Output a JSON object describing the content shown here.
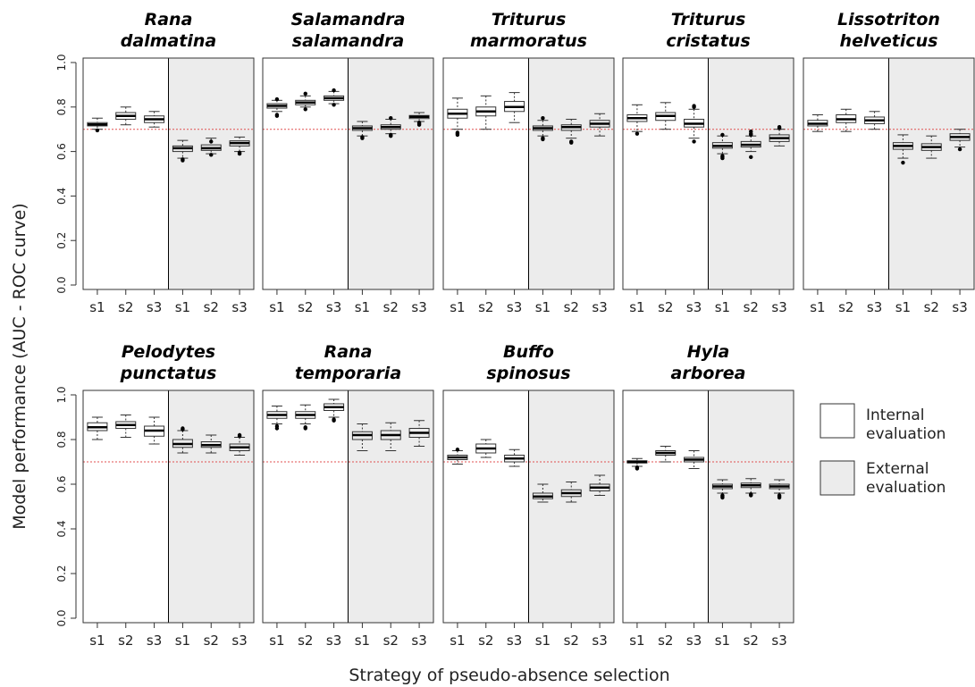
{
  "chart_data": {
    "type": "boxplot",
    "ylabel": "Model performance (AUC - ROC curve)",
    "xlabel": "Strategy of pseudo-absence selection",
    "ylim": [
      0,
      1
    ],
    "yticks": [
      "0.0",
      "0.2",
      "0.4",
      "0.6",
      "0.8",
      "1.0"
    ],
    "reference_line": 0.7,
    "reference_color": "#e05050",
    "internal_color": "#ffffff",
    "external_color": "#ececec",
    "categories": [
      "s1",
      "s2",
      "s3"
    ],
    "legend": {
      "position": "right",
      "internal": [
        "Internal",
        "evaluation"
      ],
      "external": [
        "External",
        "evaluation"
      ]
    },
    "panels": [
      {
        "title": [
          "Rana",
          "dalmatina"
        ],
        "internal": [
          {
            "lo": 0.7,
            "q1": 0.715,
            "med": 0.722,
            "q3": 0.73,
            "hi": 0.75,
            "out": [
              0.695
            ]
          },
          {
            "lo": 0.72,
            "q1": 0.745,
            "med": 0.76,
            "q3": 0.775,
            "hi": 0.8,
            "out": []
          },
          {
            "lo": 0.71,
            "q1": 0.73,
            "med": 0.745,
            "q3": 0.76,
            "hi": 0.78,
            "out": []
          }
        ],
        "external": [
          {
            "lo": 0.57,
            "q1": 0.6,
            "med": 0.615,
            "q3": 0.625,
            "hi": 0.65,
            "out": [
              0.56,
              0.565
            ]
          },
          {
            "lo": 0.59,
            "q1": 0.605,
            "med": 0.615,
            "q3": 0.63,
            "hi": 0.66,
            "out": [
              0.585,
              0.645
            ]
          },
          {
            "lo": 0.6,
            "q1": 0.625,
            "med": 0.638,
            "q3": 0.648,
            "hi": 0.665,
            "out": [
              0.59,
              0.595
            ]
          }
        ]
      },
      {
        "title": [
          "Salamandra",
          "salamandra"
        ],
        "internal": [
          {
            "lo": 0.78,
            "q1": 0.795,
            "med": 0.805,
            "q3": 0.815,
            "hi": 0.83,
            "out": [
              0.76,
              0.765,
              0.835
            ]
          },
          {
            "lo": 0.8,
            "q1": 0.81,
            "med": 0.82,
            "q3": 0.83,
            "hi": 0.85,
            "out": [
              0.79,
              0.86
            ]
          },
          {
            "lo": 0.815,
            "q1": 0.83,
            "med": 0.84,
            "q3": 0.85,
            "hi": 0.87,
            "out": [
              0.81,
              0.875
            ]
          }
        ],
        "external": [
          {
            "lo": 0.67,
            "q1": 0.695,
            "med": 0.705,
            "q3": 0.715,
            "hi": 0.735,
            "out": [
              0.66,
              0.665
            ]
          },
          {
            "lo": 0.68,
            "q1": 0.7,
            "med": 0.71,
            "q3": 0.72,
            "hi": 0.745,
            "out": [
              0.67,
              0.675,
              0.75
            ]
          },
          {
            "lo": 0.735,
            "q1": 0.748,
            "med": 0.756,
            "q3": 0.762,
            "hi": 0.775,
            "out": [
              0.72,
              0.725,
              0.73
            ]
          }
        ]
      },
      {
        "title": [
          "Triturus",
          "marmoratus"
        ],
        "internal": [
          {
            "lo": 0.7,
            "q1": 0.75,
            "med": 0.77,
            "q3": 0.79,
            "hi": 0.84,
            "out": [
              0.675,
              0.68,
              0.685
            ]
          },
          {
            "lo": 0.7,
            "q1": 0.76,
            "med": 0.78,
            "q3": 0.8,
            "hi": 0.85,
            "out": []
          },
          {
            "lo": 0.73,
            "q1": 0.78,
            "med": 0.8,
            "q3": 0.825,
            "hi": 0.865,
            "out": []
          }
        ],
        "external": [
          {
            "lo": 0.67,
            "q1": 0.695,
            "med": 0.705,
            "q3": 0.715,
            "hi": 0.74,
            "out": [
              0.655,
              0.66,
              0.75
            ]
          },
          {
            "lo": 0.66,
            "q1": 0.695,
            "med": 0.71,
            "q3": 0.72,
            "hi": 0.745,
            "out": [
              0.64,
              0.645
            ]
          },
          {
            "lo": 0.67,
            "q1": 0.71,
            "med": 0.725,
            "q3": 0.74,
            "hi": 0.77,
            "out": []
          }
        ]
      },
      {
        "title": [
          "Triturus",
          "cristatus"
        ],
        "internal": [
          {
            "lo": 0.69,
            "q1": 0.735,
            "med": 0.75,
            "q3": 0.765,
            "hi": 0.81,
            "out": [
              0.68
            ]
          },
          {
            "lo": 0.7,
            "q1": 0.74,
            "med": 0.76,
            "q3": 0.775,
            "hi": 0.82,
            "out": []
          },
          {
            "lo": 0.66,
            "q1": 0.71,
            "med": 0.725,
            "q3": 0.745,
            "hi": 0.79,
            "out": [
              0.645,
              0.8,
              0.805
            ]
          }
        ],
        "external": [
          {
            "lo": 0.59,
            "q1": 0.615,
            "med": 0.625,
            "q3": 0.64,
            "hi": 0.67,
            "out": [
              0.57,
              0.575,
              0.58,
              0.675
            ]
          },
          {
            "lo": 0.6,
            "q1": 0.62,
            "med": 0.63,
            "q3": 0.645,
            "hi": 0.67,
            "out": [
              0.575,
              0.675,
              0.68,
              0.69
            ]
          },
          {
            "lo": 0.625,
            "q1": 0.645,
            "med": 0.66,
            "q3": 0.675,
            "hi": 0.7,
            "out": [
              0.705,
              0.71
            ]
          }
        ]
      },
      {
        "title": [
          "Lissotriton",
          "helveticus"
        ],
        "internal": [
          {
            "lo": 0.69,
            "q1": 0.715,
            "med": 0.725,
            "q3": 0.74,
            "hi": 0.765,
            "out": []
          },
          {
            "lo": 0.69,
            "q1": 0.73,
            "med": 0.745,
            "q3": 0.765,
            "hi": 0.79,
            "out": []
          },
          {
            "lo": 0.7,
            "q1": 0.725,
            "med": 0.74,
            "q3": 0.755,
            "hi": 0.78,
            "out": []
          }
        ],
        "external": [
          {
            "lo": 0.57,
            "q1": 0.61,
            "med": 0.625,
            "q3": 0.64,
            "hi": 0.675,
            "out": [
              0.55
            ]
          },
          {
            "lo": 0.57,
            "q1": 0.605,
            "med": 0.62,
            "q3": 0.635,
            "hi": 0.67,
            "out": []
          },
          {
            "lo": 0.62,
            "q1": 0.65,
            "med": 0.665,
            "q3": 0.68,
            "hi": 0.7,
            "out": [
              0.61
            ]
          }
        ]
      },
      {
        "title": [
          "Pelodytes",
          "punctatus"
        ],
        "internal": [
          {
            "lo": 0.8,
            "q1": 0.84,
            "med": 0.855,
            "q3": 0.875,
            "hi": 0.9,
            "out": []
          },
          {
            "lo": 0.81,
            "q1": 0.85,
            "med": 0.865,
            "q3": 0.88,
            "hi": 0.91,
            "out": []
          },
          {
            "lo": 0.78,
            "q1": 0.815,
            "med": 0.84,
            "q3": 0.86,
            "hi": 0.9,
            "out": []
          }
        ],
        "external": [
          {
            "lo": 0.74,
            "q1": 0.765,
            "med": 0.78,
            "q3": 0.8,
            "hi": 0.84,
            "out": [
              0.845,
              0.85
            ]
          },
          {
            "lo": 0.74,
            "q1": 0.765,
            "med": 0.775,
            "q3": 0.79,
            "hi": 0.82,
            "out": []
          },
          {
            "lo": 0.73,
            "q1": 0.75,
            "med": 0.765,
            "q3": 0.78,
            "hi": 0.81,
            "out": [
              0.815,
              0.82
            ]
          }
        ]
      },
      {
        "title": [
          "Rana",
          "temporaria"
        ],
        "internal": [
          {
            "lo": 0.87,
            "q1": 0.895,
            "med": 0.91,
            "q3": 0.925,
            "hi": 0.95,
            "out": [
              0.85,
              0.86
            ]
          },
          {
            "lo": 0.87,
            "q1": 0.895,
            "med": 0.91,
            "q3": 0.925,
            "hi": 0.955,
            "out": [
              0.85,
              0.855
            ]
          },
          {
            "lo": 0.9,
            "q1": 0.93,
            "med": 0.945,
            "q3": 0.96,
            "hi": 0.98,
            "out": [
              0.885,
              0.89
            ]
          }
        ],
        "external": [
          {
            "lo": 0.75,
            "q1": 0.8,
            "med": 0.82,
            "q3": 0.835,
            "hi": 0.87,
            "out": []
          },
          {
            "lo": 0.75,
            "q1": 0.8,
            "med": 0.82,
            "q3": 0.84,
            "hi": 0.875,
            "out": []
          },
          {
            "lo": 0.77,
            "q1": 0.81,
            "med": 0.83,
            "q3": 0.85,
            "hi": 0.885,
            "out": []
          }
        ]
      },
      {
        "title": [
          "Buffo",
          "spinosus"
        ],
        "internal": [
          {
            "lo": 0.69,
            "q1": 0.71,
            "med": 0.72,
            "q3": 0.73,
            "hi": 0.75,
            "out": [
              0.755
            ]
          },
          {
            "lo": 0.72,
            "q1": 0.74,
            "med": 0.76,
            "q3": 0.78,
            "hi": 0.8,
            "out": []
          },
          {
            "lo": 0.68,
            "q1": 0.7,
            "med": 0.715,
            "q3": 0.73,
            "hi": 0.755,
            "out": []
          }
        ],
        "external": [
          {
            "lo": 0.52,
            "q1": 0.535,
            "med": 0.545,
            "q3": 0.56,
            "hi": 0.6,
            "out": []
          },
          {
            "lo": 0.52,
            "q1": 0.545,
            "med": 0.56,
            "q3": 0.575,
            "hi": 0.61,
            "out": []
          },
          {
            "lo": 0.55,
            "q1": 0.57,
            "med": 0.585,
            "q3": 0.6,
            "hi": 0.64,
            "out": []
          }
        ]
      },
      {
        "title": [
          "Hyla",
          "arborea"
        ],
        "internal": [
          {
            "lo": 0.68,
            "q1": 0.695,
            "med": 0.7,
            "q3": 0.705,
            "hi": 0.715,
            "out": [
              0.67,
              0.675
            ]
          },
          {
            "lo": 0.7,
            "q1": 0.73,
            "med": 0.74,
            "q3": 0.75,
            "hi": 0.77,
            "out": []
          },
          {
            "lo": 0.67,
            "q1": 0.7,
            "med": 0.71,
            "q3": 0.72,
            "hi": 0.75,
            "out": []
          }
        ],
        "external": [
          {
            "lo": 0.56,
            "q1": 0.58,
            "med": 0.59,
            "q3": 0.6,
            "hi": 0.62,
            "out": [
              0.54,
              0.545,
              0.55
            ]
          },
          {
            "lo": 0.56,
            "q1": 0.585,
            "med": 0.595,
            "q3": 0.605,
            "hi": 0.625,
            "out": [
              0.55,
              0.555
            ]
          },
          {
            "lo": 0.56,
            "q1": 0.58,
            "med": 0.59,
            "q3": 0.6,
            "hi": 0.62,
            "out": [
              0.54,
              0.545,
              0.55
            ]
          }
        ]
      }
    ]
  }
}
